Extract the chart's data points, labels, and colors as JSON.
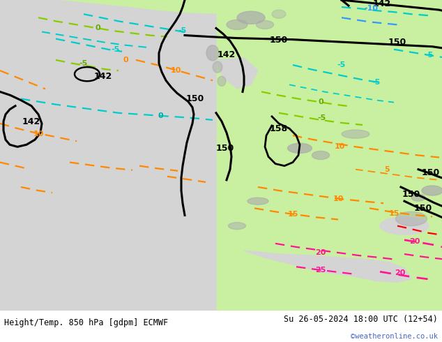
{
  "title_left": "Height/Temp. 850 hPa [gdpm] ECMWF",
  "title_right": "Su 26-05-2024 18:00 UTC (12+54)",
  "copyright": "©weatheronline.co.uk",
  "footer_bg": "#e0e0e0",
  "footer_text_color": "#000000",
  "copyright_color": "#4466cc",
  "fig_width": 6.34,
  "fig_height": 4.9,
  "dpi": 100,
  "map_bg_sea": "#d0d0d0",
  "map_bg_land_bright": "#c8f0a0",
  "map_bg_land_mid": "#b8e890",
  "map_bg_terrain": "#a8a8a8",
  "black_contour_lw": 2.2,
  "temp_contour_lw": 1.6,
  "cyan_color": "#00CCCC",
  "blue_color": "#3399FF",
  "orange_color": "#FF8800",
  "green_color": "#88CC00",
  "magenta_color": "#FF1493",
  "red_color": "#FF0000"
}
